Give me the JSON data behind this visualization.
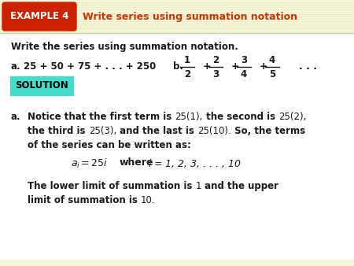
{
  "bg_color": "#fffef0",
  "body_color": "#ffffff",
  "header_bg": "#f5f5d8",
  "example_box_color": "#cc2200",
  "example_box_text": "EXAMPLE 4",
  "example_box_text_color": "#ffffff",
  "header_title": "Write series using summation notation",
  "header_title_color": "#cc3300",
  "solution_box_color": "#44ddcc",
  "solution_text": "SOLUTION",
  "solution_text_color": "#000000",
  "text_color": "#1a1a1a",
  "fracs": [
    [
      "1",
      "2"
    ],
    [
      "2",
      "3"
    ],
    [
      "3",
      "4"
    ],
    [
      "4",
      "5"
    ]
  ]
}
